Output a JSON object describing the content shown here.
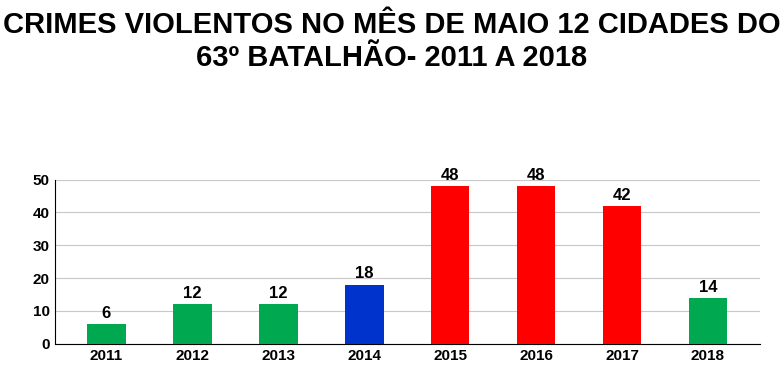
{
  "chart_data": {
    "type": "bar",
    "title": "CRIMES VIOLENTOS NO MÊS DE MAIO 12 CIDADES DO 63º BATALHÃO- 2011 A 2018",
    "categories": [
      "2011",
      "2012",
      "2013",
      "2014",
      "2015",
      "2016",
      "2017",
      "2018"
    ],
    "values": [
      6,
      12,
      12,
      18,
      48,
      48,
      42,
      14
    ],
    "colors": [
      "#00a84f",
      "#00a84f",
      "#00a84f",
      "#0033cc",
      "#ff0000",
      "#ff0000",
      "#ff0000",
      "#00a84f"
    ],
    "ylim": [
      0,
      50
    ],
    "yticks": [
      0,
      10,
      20,
      30,
      40,
      50
    ],
    "grid": true,
    "data_labels": true
  }
}
